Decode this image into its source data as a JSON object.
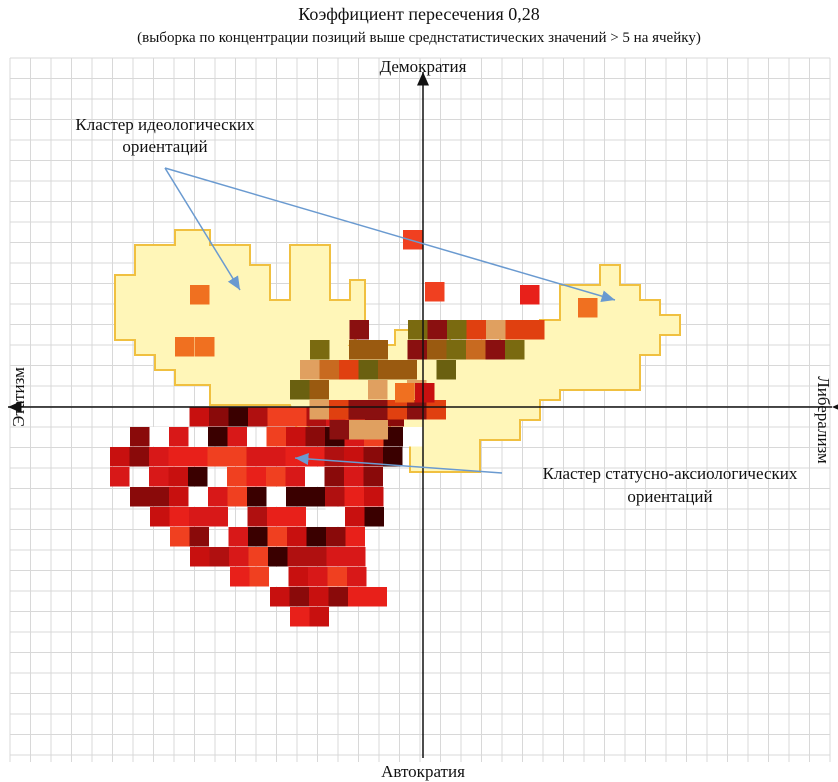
{
  "title": "Коэффициент пересечения 0,28",
  "subtitle": "(выборка по концентрации позиций выше среднстатистических значений > 5 на ячейку)",
  "axes": {
    "top": "Демократия",
    "bottom": "Автократия",
    "left": "Этатизм",
    "right": "Либерализм"
  },
  "clusters": [
    {
      "lines": [
        "Кластер идеологических",
        "ориентаций"
      ]
    },
    {
      "lines": [
        "Кластер статусно-аксиологических",
        "ориентаций"
      ]
    }
  ]
}
